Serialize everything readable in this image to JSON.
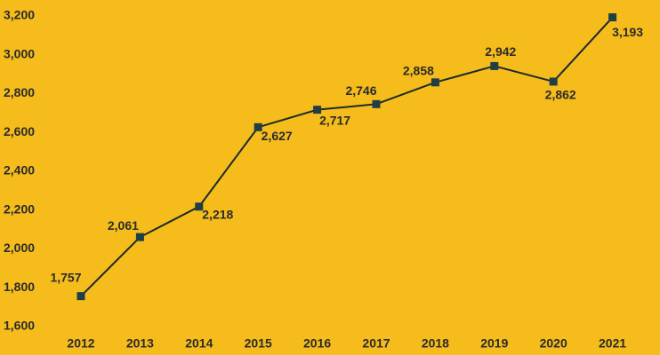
{
  "chart_data": {
    "type": "line",
    "categories": [
      "2012",
      "2013",
      "2014",
      "2015",
      "2016",
      "2017",
      "2018",
      "2019",
      "2020",
      "2021"
    ],
    "series": [
      {
        "color": "#1f3f45",
        "values": [
          1757,
          2061,
          2218,
          2627,
          2717,
          2746,
          2858,
          2942,
          2862,
          3193
        ],
        "value_labels": [
          "1,757",
          "2,061",
          "2,218",
          "2,627",
          "2,717",
          "2,746",
          "2,858",
          "2,942",
          "2,862",
          "3,193"
        ]
      }
    ],
    "ylim": [
      1600,
      3200
    ],
    "yticks": [
      {
        "value": 1600,
        "label": "1,600"
      },
      {
        "value": 1800,
        "label": "1,800"
      },
      {
        "value": 2000,
        "label": "2,000"
      },
      {
        "value": 2200,
        "label": "2,200"
      },
      {
        "value": 2400,
        "label": "2,400"
      },
      {
        "value": 2600,
        "label": "2,600"
      },
      {
        "value": 2800,
        "label": "2,800"
      },
      {
        "value": 3000,
        "label": "3,000"
      },
      {
        "value": 3200,
        "label": "3,200"
      }
    ],
    "grid": false
  }
}
